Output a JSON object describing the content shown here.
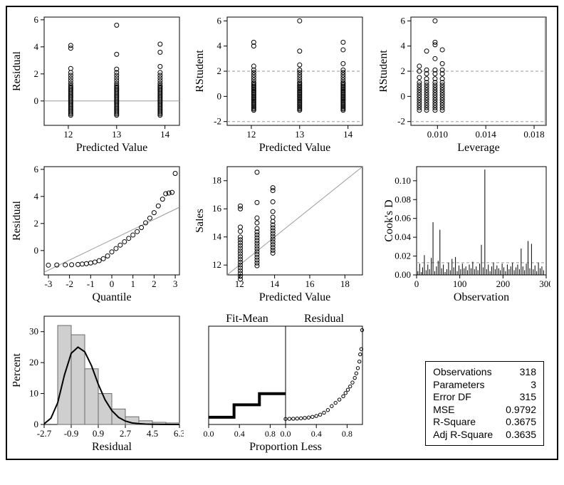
{
  "layout": {
    "bg": "#ffffff",
    "border": "#000000",
    "grid_color": "#bfbfbf",
    "ref_line": "#9a9a9a",
    "marker_stroke": "#000000",
    "marker_fill": "#ffffff",
    "marker_r": 3
  },
  "stats": {
    "rows": [
      {
        "k": "Observations",
        "v": "318"
      },
      {
        "k": "Parameters",
        "v": "3"
      },
      {
        "k": "Error DF",
        "v": "315"
      },
      {
        "k": "MSE",
        "v": "0.9792"
      },
      {
        "k": "R-Square",
        "v": "0.3675"
      },
      {
        "k": "Adj R-Square",
        "v": "0.3635"
      }
    ]
  },
  "p11": {
    "xlab": "Predicted Value",
    "ylab": "Residual",
    "xlim": [
      11.5,
      14.3
    ],
    "xticks": [
      12,
      13,
      14
    ],
    "ylim": [
      -1.8,
      6.2
    ],
    "yticks": [
      0,
      2,
      4,
      6
    ],
    "ref": 0,
    "series": [
      {
        "x": 12.05,
        "ys": [
          -1.05,
          -0.95,
          -0.85,
          -0.75,
          -0.65,
          -0.55,
          -0.45,
          -0.35,
          -0.25,
          -0.15,
          -0.05,
          0.05,
          0.15,
          0.25,
          0.35,
          0.45,
          0.55,
          0.65,
          0.75,
          0.85,
          0.95,
          1.05,
          1.15,
          1.3,
          1.5,
          1.7,
          1.9,
          2.1,
          2.4,
          3.9,
          4.1
        ]
      },
      {
        "x": 13.0,
        "ys": [
          -1.05,
          -0.95,
          -0.85,
          -0.75,
          -0.65,
          -0.55,
          -0.45,
          -0.35,
          -0.25,
          -0.15,
          -0.05,
          0.05,
          0.15,
          0.25,
          0.35,
          0.45,
          0.55,
          0.65,
          0.75,
          0.85,
          0.95,
          1.05,
          1.15,
          1.3,
          1.5,
          1.7,
          1.9,
          2.1,
          2.35,
          3.45,
          5.6
        ]
      },
      {
        "x": 13.9,
        "ys": [
          -1.05,
          -0.95,
          -0.85,
          -0.75,
          -0.65,
          -0.55,
          -0.45,
          -0.35,
          -0.25,
          -0.15,
          -0.05,
          0.05,
          0.15,
          0.25,
          0.35,
          0.45,
          0.55,
          0.65,
          0.75,
          0.85,
          0.95,
          1.05,
          1.15,
          1.3,
          1.5,
          1.7,
          1.9,
          2.1,
          2.55,
          3.6,
          4.2
        ]
      }
    ]
  },
  "p12": {
    "xlab": "Predicted Value",
    "ylab": "RStudent",
    "xlim": [
      11.5,
      14.3
    ],
    "xticks": [
      12,
      13,
      14
    ],
    "ylim": [
      -2.3,
      6.3
    ],
    "yticks": [
      -2,
      0,
      2,
      4,
      6
    ],
    "refs": [
      -2,
      2
    ],
    "series": [
      {
        "x": 12.05,
        "ys": [
          -1.1,
          -1.0,
          -0.9,
          -0.8,
          -0.7,
          -0.6,
          -0.5,
          -0.4,
          -0.3,
          -0.2,
          -0.1,
          0.0,
          0.1,
          0.2,
          0.3,
          0.4,
          0.5,
          0.6,
          0.7,
          0.8,
          0.9,
          1.0,
          1.1,
          1.3,
          1.5,
          1.7,
          1.9,
          2.1,
          2.4,
          4.0,
          4.3
        ]
      },
      {
        "x": 13.0,
        "ys": [
          -1.1,
          -1.0,
          -0.9,
          -0.8,
          -0.7,
          -0.6,
          -0.5,
          -0.4,
          -0.3,
          -0.2,
          -0.1,
          0.0,
          0.1,
          0.2,
          0.3,
          0.4,
          0.5,
          0.6,
          0.7,
          0.8,
          0.9,
          1.0,
          1.1,
          1.3,
          1.5,
          1.7,
          1.9,
          2.1,
          2.5,
          3.6,
          6.0
        ]
      },
      {
        "x": 13.9,
        "ys": [
          -1.1,
          -1.0,
          -0.9,
          -0.8,
          -0.7,
          -0.6,
          -0.5,
          -0.4,
          -0.3,
          -0.2,
          -0.1,
          0.0,
          0.1,
          0.2,
          0.3,
          0.4,
          0.5,
          0.6,
          0.7,
          0.8,
          0.9,
          1.0,
          1.1,
          1.3,
          1.5,
          1.7,
          1.9,
          2.1,
          2.6,
          3.7,
          4.3
        ]
      }
    ]
  },
  "p13": {
    "xlab": "Leverage",
    "ylab": "RStudent",
    "xlim": [
      0.0078,
      0.019
    ],
    "xticks": [
      0.01,
      0.014,
      0.018
    ],
    "ylim": [
      -2.3,
      6.3
    ],
    "yticks": [
      -2,
      0,
      2,
      4,
      6
    ],
    "vline": 0.0189,
    "refs": [
      -2,
      2
    ],
    "series": [
      {
        "x": 0.0085,
        "ys": [
          -1.1,
          -0.9,
          -0.7,
          -0.5,
          -0.3,
          -0.1,
          0.1,
          0.3,
          0.5,
          0.7,
          0.9,
          1.1,
          1.5,
          2.0,
          2.4
        ]
      },
      {
        "x": 0.0091,
        "ys": [
          -1.1,
          -0.9,
          -0.7,
          -0.5,
          -0.3,
          -0.1,
          0.1,
          0.3,
          0.5,
          0.7,
          0.9,
          1.1,
          1.4,
          1.8,
          2.1,
          3.6
        ]
      },
      {
        "x": 0.0098,
        "ys": [
          -1.1,
          -0.9,
          -0.7,
          -0.5,
          -0.3,
          -0.1,
          0.1,
          0.3,
          0.5,
          0.7,
          0.9,
          1.1,
          1.4,
          1.8,
          2.1,
          3.0,
          4.1,
          4.3,
          6.0
        ]
      },
      {
        "x": 0.0104,
        "ys": [
          -1.1,
          -0.9,
          -0.7,
          -0.5,
          -0.3,
          -0.1,
          0.1,
          0.3,
          0.5,
          0.7,
          0.9,
          1.1,
          1.4,
          1.8,
          2.1,
          2.6,
          3.7
        ]
      }
    ]
  },
  "p21": {
    "xlab": "Quantile",
    "ylab": "Residual",
    "xlim": [
      -3.2,
      3.2
    ],
    "xticks": [
      -3,
      -2,
      -1,
      0,
      1,
      2,
      3
    ],
    "ylim": [
      -1.8,
      6.2
    ],
    "yticks": [
      0,
      2,
      4,
      6
    ],
    "refline": {
      "y0_at_xmin": -1.6,
      "y1_at_xmax": 3.2
    },
    "curve": [
      [
        -3.0,
        -1.08
      ],
      [
        -2.6,
        -1.07
      ],
      [
        -2.2,
        -1.06
      ],
      [
        -1.9,
        -1.05
      ],
      [
        -1.6,
        -1.03
      ],
      [
        -1.4,
        -1.0
      ],
      [
        -1.2,
        -0.97
      ],
      [
        -1.0,
        -0.92
      ],
      [
        -0.8,
        -0.85
      ],
      [
        -0.6,
        -0.75
      ],
      [
        -0.4,
        -0.6
      ],
      [
        -0.2,
        -0.4
      ],
      [
        0.0,
        -0.1
      ],
      [
        0.2,
        0.15
      ],
      [
        0.4,
        0.4
      ],
      [
        0.6,
        0.65
      ],
      [
        0.8,
        0.9
      ],
      [
        1.0,
        1.15
      ],
      [
        1.2,
        1.4
      ],
      [
        1.4,
        1.7
      ],
      [
        1.6,
        2.05
      ],
      [
        1.8,
        2.4
      ],
      [
        2.0,
        2.8
      ],
      [
        2.2,
        3.3
      ],
      [
        2.4,
        3.8
      ],
      [
        2.55,
        4.2
      ],
      [
        2.7,
        4.25
      ],
      [
        2.85,
        4.3
      ],
      [
        3.0,
        5.7
      ]
    ]
  },
  "p22": {
    "xlab": "Predicted Value",
    "ylab": "Sales",
    "xlim": [
      11.3,
      19.0
    ],
    "xticks": [
      12,
      14,
      16,
      18
    ],
    "ylim": [
      11.3,
      19.0
    ],
    "yticks": [
      12,
      14,
      16,
      18
    ],
    "diag": true,
    "series": [
      {
        "x": 12.05,
        "ys": [
          11.0,
          11.2,
          11.4,
          11.6,
          11.8,
          12.0,
          12.2,
          12.4,
          12.6,
          12.8,
          13.0,
          13.2,
          13.4,
          13.6,
          13.8,
          14.0,
          14.4,
          14.7,
          16.0,
          16.2
        ]
      },
      {
        "x": 13.0,
        "ys": [
          11.95,
          12.15,
          12.35,
          12.55,
          12.75,
          12.95,
          13.15,
          13.35,
          13.55,
          13.75,
          13.95,
          14.15,
          14.35,
          14.6,
          15.0,
          15.35,
          16.45,
          18.6
        ]
      },
      {
        "x": 13.9,
        "ys": [
          12.85,
          13.05,
          13.25,
          13.45,
          13.65,
          13.85,
          14.05,
          14.25,
          14.45,
          14.65,
          14.85,
          15.1,
          15.4,
          15.8,
          16.5,
          17.5,
          17.3
        ]
      }
    ]
  },
  "p23": {
    "xlab": "Observation",
    "ylab": "Cook's D",
    "xlim": [
      0,
      300
    ],
    "xticks": [
      0,
      100,
      200,
      300
    ],
    "ylim": [
      0,
      0.115
    ],
    "yticks": [
      0.0,
      0.02,
      0.04,
      0.06,
      0.08,
      0.1
    ],
    "ref": 0.013,
    "needles": [
      [
        3,
        0.004
      ],
      [
        7,
        0.012
      ],
      [
        11,
        0.003
      ],
      [
        14,
        0.008
      ],
      [
        18,
        0.021
      ],
      [
        22,
        0.005
      ],
      [
        26,
        0.011
      ],
      [
        30,
        0.006
      ],
      [
        34,
        0.018
      ],
      [
        38,
        0.056
      ],
      [
        42,
        0.004
      ],
      [
        46,
        0.009
      ],
      [
        50,
        0.015
      ],
      [
        54,
        0.048
      ],
      [
        58,
        0.007
      ],
      [
        62,
        0.011
      ],
      [
        66,
        0.003
      ],
      [
        70,
        0.006
      ],
      [
        74,
        0.013
      ],
      [
        78,
        0.005
      ],
      [
        82,
        0.017
      ],
      [
        86,
        0.008
      ],
      [
        90,
        0.019
      ],
      [
        94,
        0.004
      ],
      [
        98,
        0.01
      ],
      [
        102,
        0.006
      ],
      [
        106,
        0.012
      ],
      [
        110,
        0.007
      ],
      [
        114,
        0.009
      ],
      [
        118,
        0.005
      ],
      [
        122,
        0.011
      ],
      [
        126,
        0.007
      ],
      [
        130,
        0.014
      ],
      [
        134,
        0.006
      ],
      [
        138,
        0.009
      ],
      [
        142,
        0.005
      ],
      [
        146,
        0.012
      ],
      [
        150,
        0.032
      ],
      [
        154,
        0.008
      ],
      [
        158,
        0.112
      ],
      [
        162,
        0.006
      ],
      [
        166,
        0.011
      ],
      [
        170,
        0.004
      ],
      [
        174,
        0.009
      ],
      [
        178,
        0.013
      ],
      [
        182,
        0.006
      ],
      [
        186,
        0.01
      ],
      [
        190,
        0.007
      ],
      [
        194,
        0.005
      ],
      [
        198,
        0.012
      ],
      [
        202,
        0.008
      ],
      [
        206,
        0.004
      ],
      [
        210,
        0.011
      ],
      [
        214,
        0.006
      ],
      [
        218,
        0.009
      ],
      [
        222,
        0.013
      ],
      [
        226,
        0.005
      ],
      [
        230,
        0.008
      ],
      [
        234,
        0.011
      ],
      [
        238,
        0.006
      ],
      [
        242,
        0.028
      ],
      [
        246,
        0.009
      ],
      [
        250,
        0.005
      ],
      [
        254,
        0.012
      ],
      [
        258,
        0.036
      ],
      [
        262,
        0.007
      ],
      [
        266,
        0.033
      ],
      [
        270,
        0.006
      ],
      [
        274,
        0.01
      ],
      [
        278,
        0.004
      ],
      [
        282,
        0.013
      ],
      [
        286,
        0.007
      ],
      [
        290,
        0.009
      ],
      [
        294,
        0.005
      ]
    ]
  },
  "p31": {
    "xlab": "Residual",
    "ylab": "Percent",
    "xlim": [
      -2.7,
      6.3
    ],
    "xticks": [
      -2.7,
      -0.9,
      0.9,
      2.7,
      4.5,
      6.3
    ],
    "ylim": [
      0,
      35
    ],
    "yticks": [
      0,
      10,
      20,
      30
    ],
    "bar_fill": "#cfcfcf",
    "bar_stroke": "#6b6b6b",
    "bar_width": 0.9,
    "bars": [
      [
        -1.35,
        32
      ],
      [
        -0.45,
        29
      ],
      [
        0.45,
        18
      ],
      [
        1.35,
        10
      ],
      [
        2.25,
        5
      ],
      [
        3.15,
        2.5
      ],
      [
        4.05,
        1.2
      ],
      [
        4.95,
        0.7
      ],
      [
        5.85,
        0.5
      ]
    ],
    "curve": [
      [
        -2.7,
        0.2
      ],
      [
        -2.25,
        2
      ],
      [
        -1.8,
        7
      ],
      [
        -1.35,
        16
      ],
      [
        -0.9,
        23
      ],
      [
        -0.45,
        25
      ],
      [
        0.0,
        23.5
      ],
      [
        0.45,
        19
      ],
      [
        0.9,
        13
      ],
      [
        1.35,
        8
      ],
      [
        1.8,
        4.5
      ],
      [
        2.25,
        2.3
      ],
      [
        2.7,
        1.1
      ],
      [
        3.15,
        0.5
      ],
      [
        3.6,
        0.25
      ],
      [
        4.05,
        0.12
      ],
      [
        4.5,
        0.06
      ],
      [
        5.85,
        0.01
      ],
      [
        6.3,
        0.01
      ]
    ]
  },
  "p32": {
    "toplabels": [
      "Fit-Mean",
      "Residual"
    ],
    "xlab": "Proportion Less",
    "xlim": [
      0,
      1
    ],
    "xticks": [
      0.0,
      0.4,
      0.8
    ],
    "ylim": [
      -1.5,
      6.0
    ],
    "left_steps": [
      [
        0.0,
        -0.95
      ],
      [
        0.33,
        -0.95
      ],
      [
        0.33,
        0.0
      ],
      [
        0.66,
        0.0
      ],
      [
        0.66,
        0.85
      ],
      [
        1.0,
        0.85
      ]
    ],
    "right_curve": [
      [
        0.0,
        -1.08
      ],
      [
        0.05,
        -1.07
      ],
      [
        0.1,
        -1.06
      ],
      [
        0.15,
        -1.05
      ],
      [
        0.2,
        -1.03
      ],
      [
        0.25,
        -1.0
      ],
      [
        0.3,
        -0.97
      ],
      [
        0.35,
        -0.92
      ],
      [
        0.4,
        -0.85
      ],
      [
        0.45,
        -0.75
      ],
      [
        0.5,
        -0.6
      ],
      [
        0.55,
        -0.4
      ],
      [
        0.6,
        -0.1
      ],
      [
        0.65,
        0.15
      ],
      [
        0.7,
        0.4
      ],
      [
        0.75,
        0.65
      ],
      [
        0.78,
        0.9
      ],
      [
        0.81,
        1.15
      ],
      [
        0.84,
        1.4
      ],
      [
        0.87,
        1.7
      ],
      [
        0.9,
        2.05
      ],
      [
        0.92,
        2.4
      ],
      [
        0.94,
        2.8
      ],
      [
        0.96,
        3.3
      ],
      [
        0.97,
        3.85
      ],
      [
        0.985,
        4.25
      ],
      [
        0.995,
        5.7
      ]
    ]
  }
}
